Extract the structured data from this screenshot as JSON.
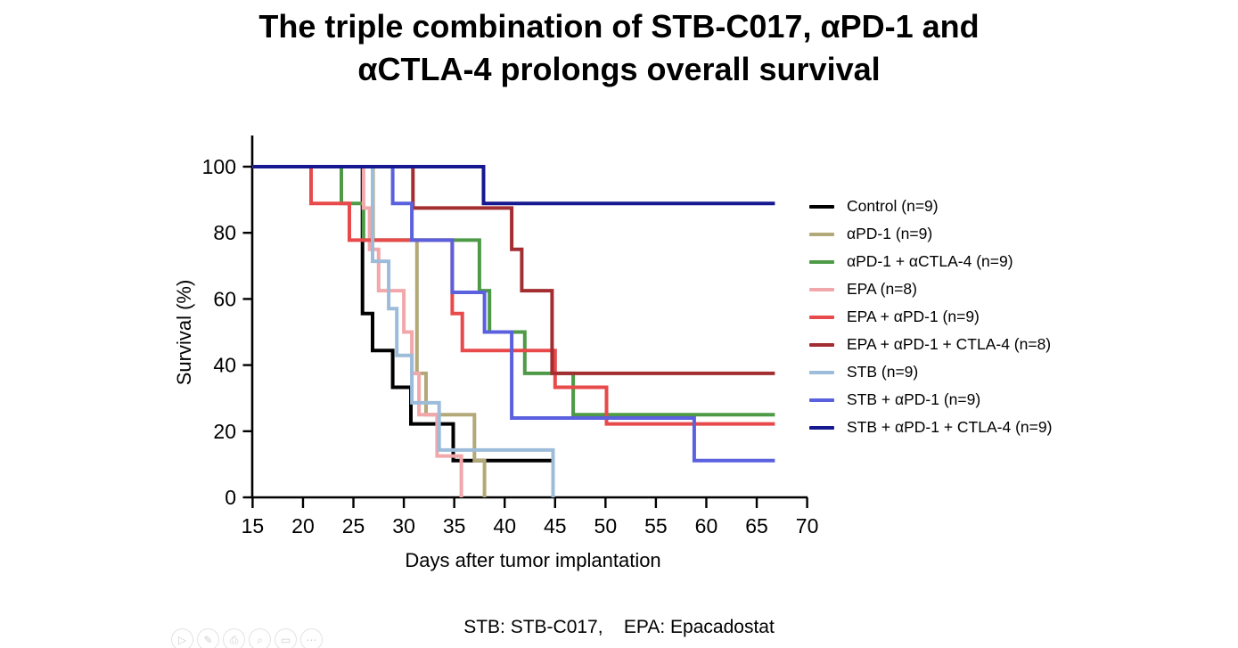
{
  "title": {
    "line1": "The triple combination of  STB-C017, αPD-1 and",
    "line2": "αCTLA-4 prolongs overall survival"
  },
  "caption": "STB: STB-C017,    EPA: Epacadostat",
  "chart_data": {
    "type": "line",
    "subtype": "kaplan-meier-step-curves",
    "title": "The triple combination of STB-C017, αPD-1 and αCTLA-4 prolongs overall survival",
    "xlabel": "Days after tumor implantation",
    "ylabel": "Survival (%)",
    "xlim": [
      15,
      70
    ],
    "ylim": [
      0,
      100
    ],
    "x_ticks": [
      15,
      20,
      25,
      30,
      35,
      40,
      45,
      50,
      55,
      60,
      65,
      70
    ],
    "y_ticks": [
      100,
      80,
      60,
      40,
      20,
      0
    ],
    "grid": false,
    "legend_position": "right",
    "axis_color": "#000000",
    "series": [
      {
        "name": "control",
        "label": "Control (n=9)",
        "color": "#000000",
        "steps": [
          [
            25.9,
            55.6
          ],
          [
            26.9,
            44.4
          ],
          [
            28.9,
            33.3
          ],
          [
            30.7,
            22.2
          ],
          [
            34.9,
            11.1
          ]
        ],
        "end_day": 44.8
      },
      {
        "name": "apd1",
        "label": "αPD-1 (n=9)",
        "color": "#b2a878",
        "steps": [
          [
            26.95,
            77.8
          ],
          [
            31.3,
            37.5
          ],
          [
            32.2,
            25
          ],
          [
            37,
            11.1
          ],
          [
            38,
            0
          ]
        ],
        "end_day": null
      },
      {
        "name": "apd1-actla4",
        "label": "αPD-1 + αCTLA-4 (n=9)",
        "color": "#4e9a47",
        "steps": [
          [
            23.8,
            88.9
          ],
          [
            26,
            77.8
          ],
          [
            37.5,
            62.5
          ],
          [
            38.5,
            50
          ],
          [
            42,
            37.5
          ],
          [
            46.8,
            25
          ]
        ],
        "end_day": 66.8
      },
      {
        "name": "epa",
        "label": "EPA (n=8)",
        "color": "#f2a7ab",
        "steps": [
          [
            26,
            87.5
          ],
          [
            26.6,
            75
          ],
          [
            27.5,
            62.5
          ],
          [
            30,
            50
          ],
          [
            30.8,
            37.5
          ],
          [
            31.5,
            25
          ],
          [
            33.3,
            12.5
          ],
          [
            35.7,
            0
          ]
        ],
        "end_day": null
      },
      {
        "name": "epa-apd1",
        "label": "EPA + αPD-1 (n=9)",
        "color": "#e8494a",
        "steps": [
          [
            20.8,
            88.9
          ],
          [
            24.6,
            77.8
          ],
          [
            34.8,
            55.6
          ],
          [
            35.8,
            44.4
          ],
          [
            45,
            33.3
          ],
          [
            50.1,
            22.2
          ]
        ],
        "end_day": 66.8
      },
      {
        "name": "epa-apd1-ctla4",
        "label": "EPA + αPD-1 + CTLA-4 (n=8)",
        "color": "#a32e32",
        "steps": [
          [
            30.9,
            87.5
          ],
          [
            40.7,
            75
          ],
          [
            41.7,
            62.5
          ],
          [
            44.7,
            37.5
          ]
        ],
        "end_day": 66.8
      },
      {
        "name": "stb",
        "label": "STB (n=9)",
        "color": "#9cbcda",
        "steps": [
          [
            26.9,
            71.4
          ],
          [
            28.5,
            57.1
          ],
          [
            29.3,
            42.9
          ],
          [
            30.8,
            28.6
          ],
          [
            33.5,
            14.3
          ],
          [
            44.8,
            0
          ]
        ],
        "end_day": null
      },
      {
        "name": "stb-apd1",
        "label": "STB + αPD-1 (n=9)",
        "color": "#5a60de",
        "steps": [
          [
            28.9,
            88.9
          ],
          [
            30.8,
            77.8
          ],
          [
            34.8,
            62
          ],
          [
            38,
            50
          ],
          [
            40.7,
            24
          ],
          [
            58.8,
            11.1
          ]
        ],
        "end_day": 66.8
      },
      {
        "name": "stb-apd1-ctla4",
        "label": "STB + αPD-1 + CTLA-4 (n=9)",
        "color": "#16188f",
        "steps": [
          [
            37.9,
            88.9
          ]
        ],
        "end_day": 66.8
      }
    ]
  },
  "toolbar_icons": [
    {
      "name": "play-icon",
      "glyph": "▷"
    },
    {
      "name": "pencil-icon",
      "glyph": "✎"
    },
    {
      "name": "print-icon",
      "glyph": "⎙"
    },
    {
      "name": "search-icon",
      "glyph": "⌕"
    },
    {
      "name": "monitor-icon",
      "glyph": "▭"
    },
    {
      "name": "more-icon",
      "glyph": "⋯"
    }
  ]
}
